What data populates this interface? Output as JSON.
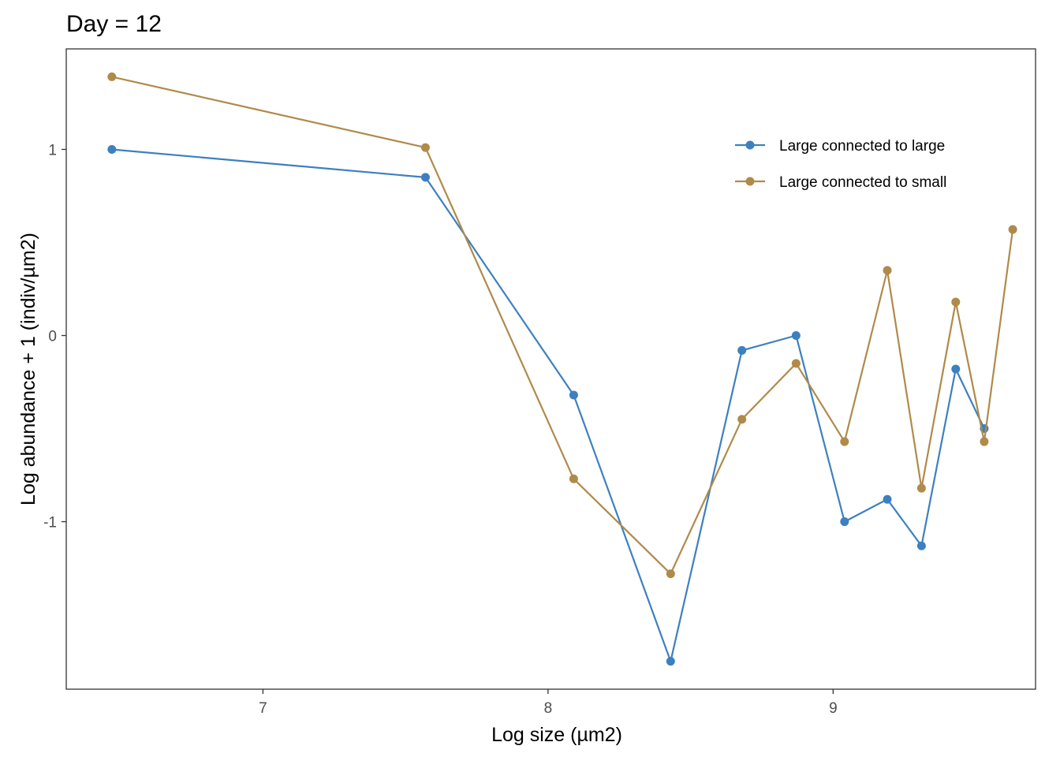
{
  "chart_data": {
    "type": "line",
    "title": "Day = 12",
    "xlabel": "Log size (µm2)",
    "ylabel": "Log abundance + 1  (indiv/µm2)",
    "xlim": [
      6.31,
      9.71
    ],
    "ylim": [
      -1.9,
      1.54
    ],
    "x_ticks": [
      7,
      8,
      9
    ],
    "y_ticks": [
      -1,
      0,
      1
    ],
    "grid": false,
    "legend_position": "top-right",
    "series": [
      {
        "name": "Large connected to large",
        "color": "#3d80bf",
        "points": [
          [
            6.47,
            1.0
          ],
          [
            7.57,
            0.85
          ],
          [
            8.09,
            -0.32
          ],
          [
            8.43,
            -1.75
          ],
          [
            8.68,
            -0.08
          ],
          [
            8.87,
            0.0
          ],
          [
            9.04,
            -1.0
          ],
          [
            9.19,
            -0.88
          ],
          [
            9.31,
            -1.13
          ],
          [
            9.43,
            -0.18
          ],
          [
            9.53,
            -0.5
          ]
        ]
      },
      {
        "name": "Large connected to small",
        "color": "#b08a4a",
        "points": [
          [
            6.47,
            1.39
          ],
          [
            7.57,
            1.01
          ],
          [
            8.09,
            -0.77
          ],
          [
            8.43,
            -1.28
          ],
          [
            8.68,
            -0.45
          ],
          [
            8.87,
            -0.15
          ],
          [
            9.04,
            -0.57
          ],
          [
            9.19,
            0.35
          ],
          [
            9.31,
            -0.82
          ],
          [
            9.43,
            0.18
          ],
          [
            9.53,
            -0.57
          ],
          [
            9.63,
            0.57
          ]
        ]
      }
    ]
  }
}
